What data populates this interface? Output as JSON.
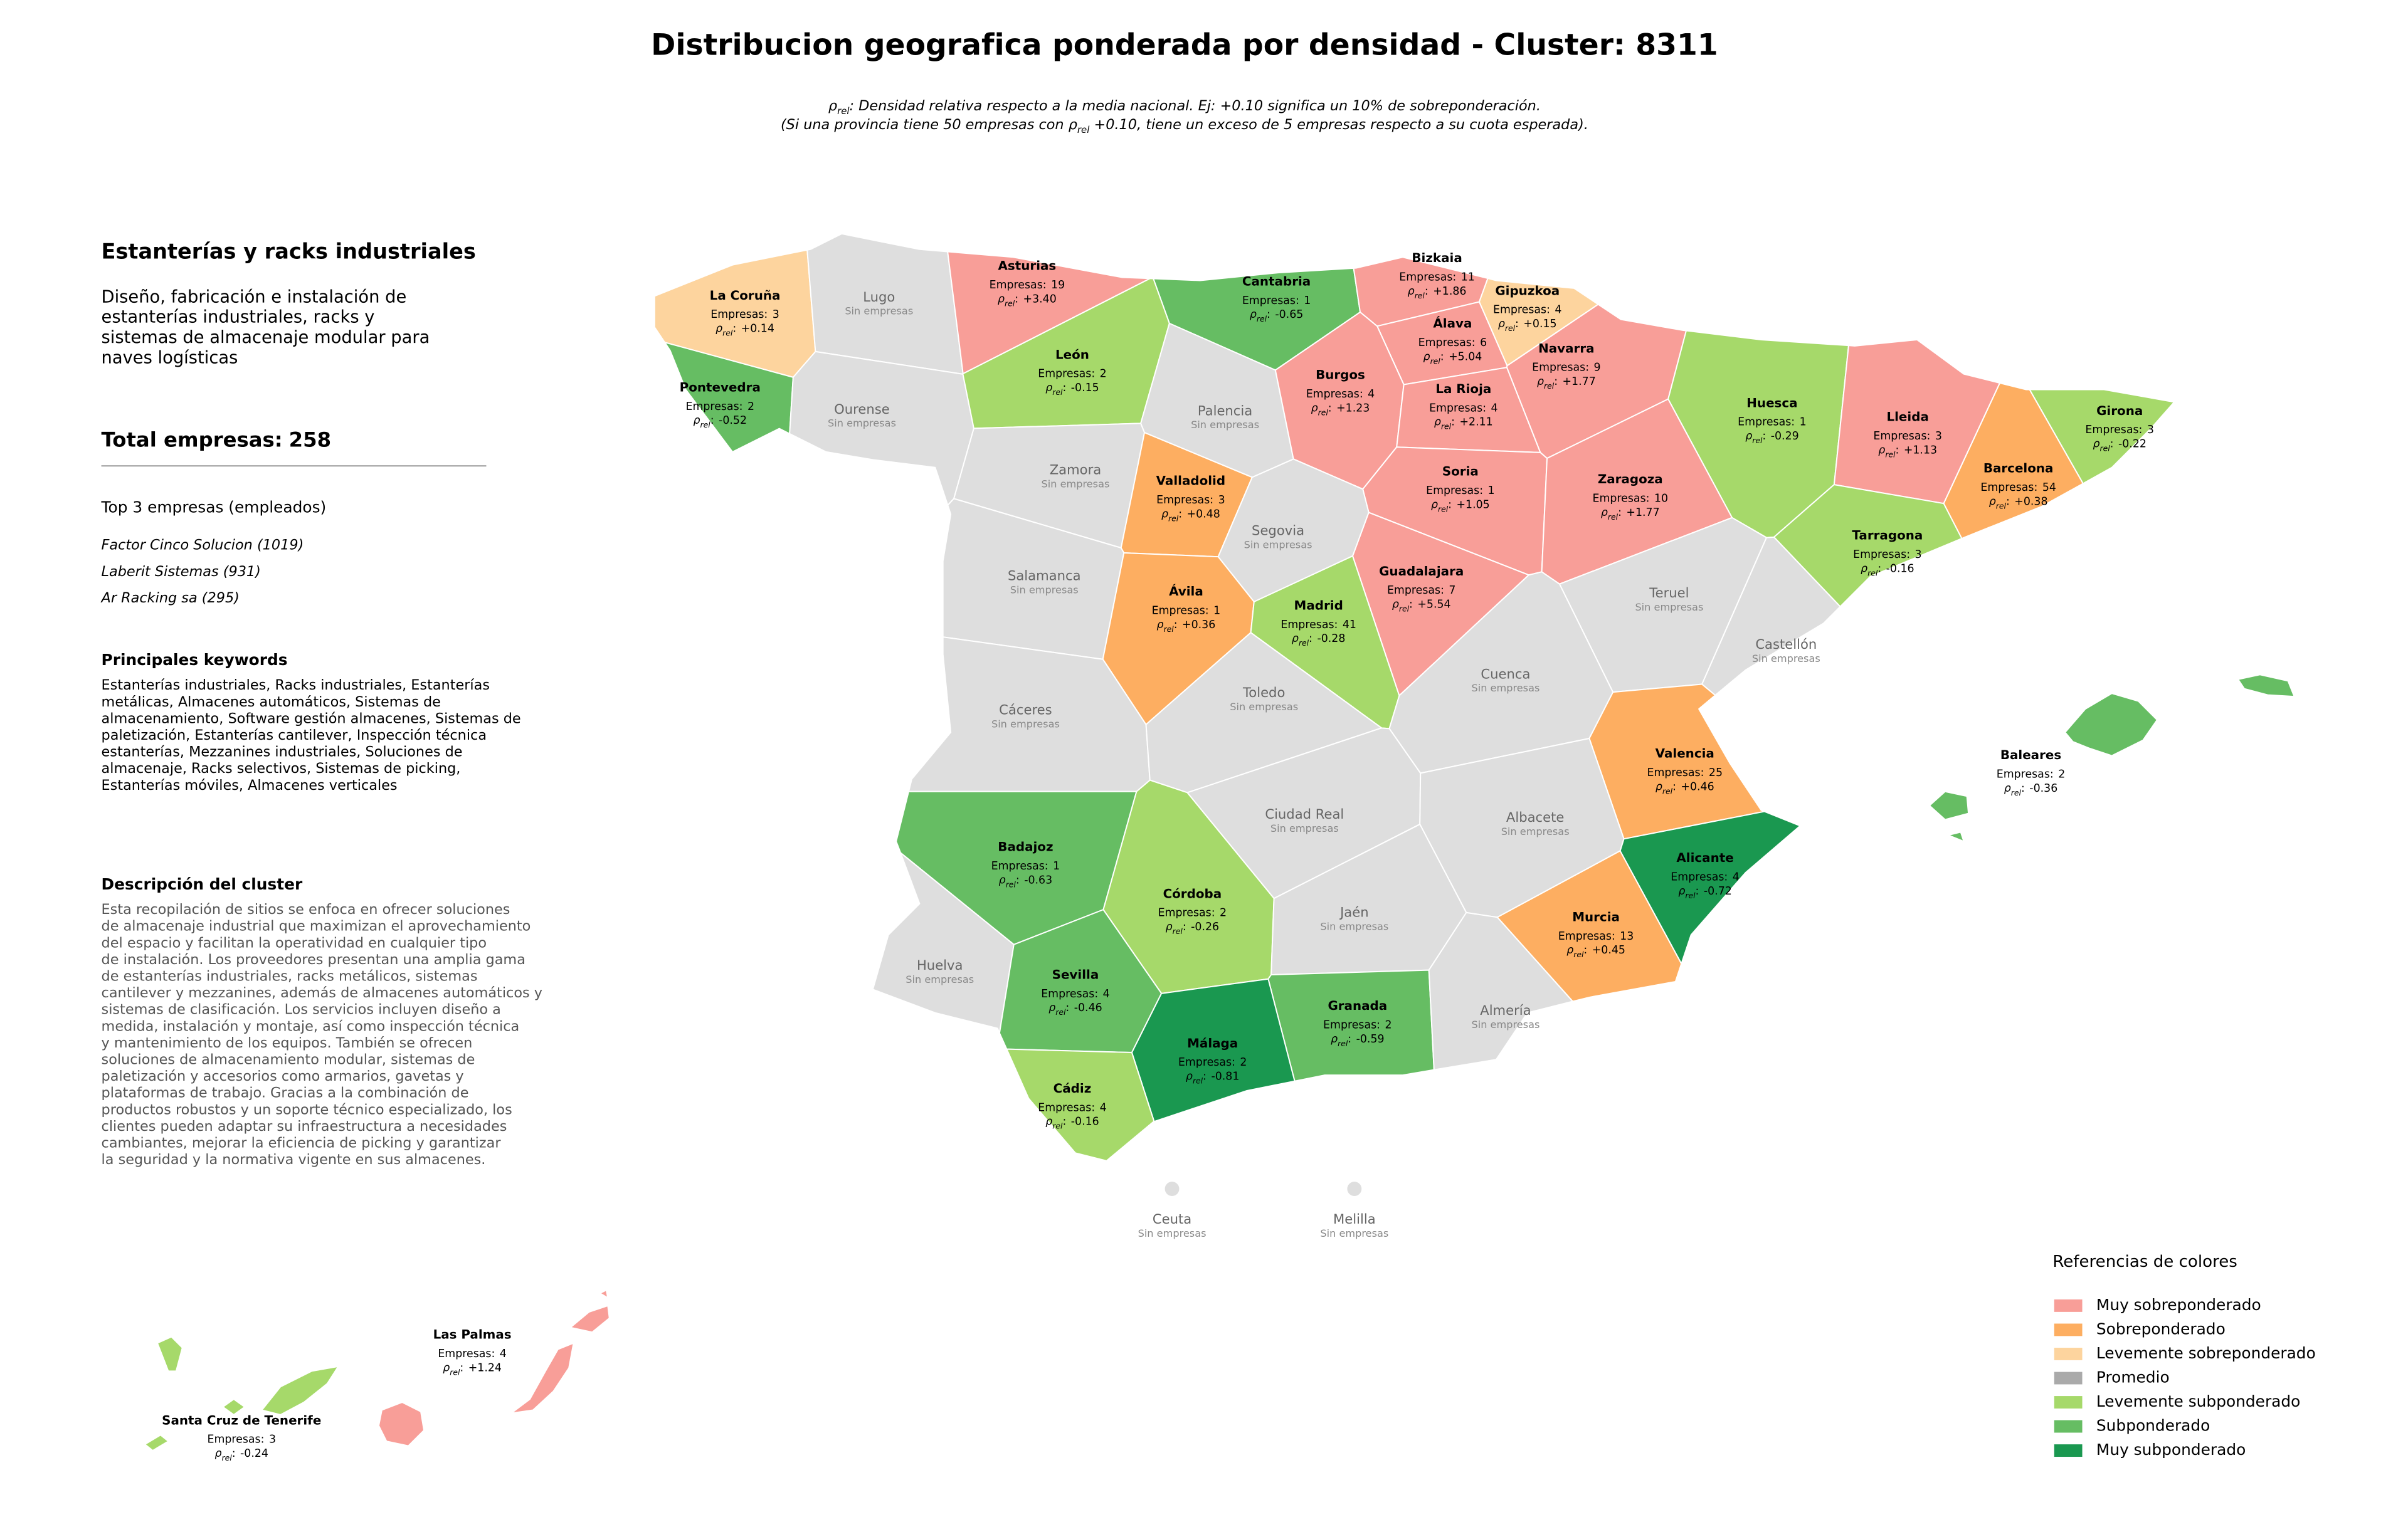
{
  "header": {
    "title": "Distribucion geografica ponderada por densidad - Cluster: 8311",
    "subtitle_lines": [
      {
        "before": "ρ",
        "subscript": "rel",
        "after": ": Densidad relativa respecto a la media nacional. Ej: +0.10 significa un 10% de sobreponderación."
      },
      {
        "before": "(Si una provincia tiene 50 empresas con ρ",
        "subscript": "rel",
        "after": " +0.10, tiene un exceso de 5 empresas respecto a su cuota esperada)."
      }
    ]
  },
  "sidebar": {
    "sector": "Estanterías y racks industriales",
    "sector_description": [
      "Diseño, fabricación e instalación de",
      "estanterías industriales, racks y",
      "sistemas de almacenaje modular para",
      "naves logísticas"
    ],
    "total_label": "Total empresas:",
    "total": 258,
    "top_title": "Top 3 empresas (empleados)",
    "top_companies": [
      "Factor Cinco Solucion (1019)",
      "Laberit Sistemas (931)",
      "Ar Racking sa (295)"
    ],
    "keywords_title": "Principales keywords",
    "keywords": [
      "Estanterías industriales, Racks industriales, Estanterías",
      "metálicas, Almacenes automáticos, Sistemas de",
      "almacenamiento, Software gestión almacenes, Sistemas de",
      "paletización, Estanterías cantilever, Inspección técnica",
      "estanterías, Mezzanines industriales, Soluciones de",
      "almacenaje, Racks selectivos, Sistemas de picking,",
      "Estanterías móviles, Almacenes verticales"
    ],
    "description_title": "Descripción del cluster",
    "description": [
      "Esta recopilación de sitios se enfoca en ofrecer soluciones",
      "de almacenaje industrial que maximizan el aprovechamiento",
      "del espacio y facilitan la operatividad en cualquier tipo",
      "de instalación. Los proveedores presentan una amplia gama",
      "de estanterías industriales, racks metálicos, sistemas",
      "cantilever y mezzanines, además de almacenes automáticos y",
      "sistemas de clasificación. Los servicios incluyen diseño a",
      "medida, instalación y montaje, así como inspección técnica",
      "y mantenimiento de los equipos. También se ofrecen",
      "soluciones de almacenamiento modular, sistemas de",
      "paletización y accesorios como armarios, gavetas y",
      "plataformas de trabajo. Gracias a la combinación de",
      "productos robustos y un soporte técnico especializado, los",
      "clientes pueden adaptar su infraestructura a necesidades",
      "cambiantes, mejorar la eficiencia de picking y garantizar",
      "la seguridad y la normativa vigente en sus almacenes."
    ]
  },
  "map": {
    "companies_label": "Empresas:",
    "rho_prefix": {
      "symbol": "ρ",
      "subscript": "rel",
      "separator": ":"
    },
    "no_companies_label": "Sin empresas",
    "regions": [
      {
        "name": "La Coruña",
        "companies": 3,
        "rho": 0.14,
        "rho_label": "+0.14",
        "color": "#fdd49e"
      },
      {
        "name": "Lugo",
        "color": "#dedede"
      },
      {
        "name": "Asturias",
        "companies": 19,
        "rho": 3.4,
        "rho_label": "+3.40",
        "color": "#f89e98"
      },
      {
        "name": "Cantabria",
        "companies": 1,
        "rho": -0.65,
        "rho_label": "-0.65",
        "color": "#66bd63"
      },
      {
        "name": "Bizkaia",
        "companies": 11,
        "rho": 1.86,
        "rho_label": "+1.86",
        "color": "#f89e98"
      },
      {
        "name": "Gipuzkoa",
        "companies": 4,
        "rho": 0.15,
        "rho_label": "+0.15",
        "color": "#fdd49e"
      },
      {
        "name": "Álava",
        "companies": 6,
        "rho": 5.04,
        "rho_label": "+5.04",
        "color": "#f89e98"
      },
      {
        "name": "Navarra",
        "companies": 9,
        "rho": 1.77,
        "rho_label": "+1.77",
        "color": "#f89e98"
      },
      {
        "name": "Pontevedra",
        "companies": 2,
        "rho": -0.52,
        "rho_label": "-0.52",
        "color": "#66bd63"
      },
      {
        "name": "Ourense",
        "color": "#dedede"
      },
      {
        "name": "León",
        "companies": 2,
        "rho": -0.15,
        "rho_label": "-0.15",
        "color": "#a6d96a"
      },
      {
        "name": "Palencia",
        "color": "#dedede"
      },
      {
        "name": "Burgos",
        "companies": 4,
        "rho": 1.23,
        "rho_label": "+1.23",
        "color": "#f89e98"
      },
      {
        "name": "La Rioja",
        "companies": 4,
        "rho": 2.11,
        "rho_label": "+2.11",
        "color": "#f89e98"
      },
      {
        "name": "Huesca",
        "companies": 1,
        "rho": -0.29,
        "rho_label": "-0.29",
        "color": "#a6d96a"
      },
      {
        "name": "Lleida",
        "companies": 3,
        "rho": 1.13,
        "rho_label": "+1.13",
        "color": "#f89e98"
      },
      {
        "name": "Girona",
        "companies": 3,
        "rho": -0.22,
        "rho_label": "-0.22",
        "color": "#a6d96a"
      },
      {
        "name": "Zamora",
        "color": "#dedede"
      },
      {
        "name": "Valladolid",
        "companies": 3,
        "rho": 0.48,
        "rho_label": "+0.48",
        "color": "#fdae61"
      },
      {
        "name": "Soria",
        "companies": 1,
        "rho": 1.05,
        "rho_label": "+1.05",
        "color": "#f89e98"
      },
      {
        "name": "Zaragoza",
        "companies": 10,
        "rho": 1.77,
        "rho_label": "+1.77",
        "color": "#f89e98"
      },
      {
        "name": "Barcelona",
        "companies": 54,
        "rho": 0.38,
        "rho_label": "+0.38",
        "color": "#fdae61"
      },
      {
        "name": "Tarragona",
        "companies": 3,
        "rho": -0.16,
        "rho_label": "-0.16",
        "color": "#a6d96a"
      },
      {
        "name": "Segovia",
        "color": "#dedede"
      },
      {
        "name": "Salamanca",
        "color": "#dedede"
      },
      {
        "name": "Ávila",
        "companies": 1,
        "rho": 0.36,
        "rho_label": "+0.36",
        "color": "#fdae61"
      },
      {
        "name": "Madrid",
        "companies": 41,
        "rho": -0.28,
        "rho_label": "-0.28",
        "color": "#a6d96a"
      },
      {
        "name": "Guadalajara",
        "companies": 7,
        "rho": 5.54,
        "rho_label": "+5.54",
        "color": "#f89e98"
      },
      {
        "name": "Teruel",
        "color": "#dedede"
      },
      {
        "name": "Castellón",
        "color": "#dedede"
      },
      {
        "name": "Cáceres",
        "color": "#dedede"
      },
      {
        "name": "Toledo",
        "color": "#dedede"
      },
      {
        "name": "Cuenca",
        "color": "#dedede"
      },
      {
        "name": "Valencia",
        "companies": 25,
        "rho": 0.46,
        "rho_label": "+0.46",
        "color": "#fdae61"
      },
      {
        "name": "Badajoz",
        "companies": 1,
        "rho": -0.63,
        "rho_label": "-0.63",
        "color": "#66bd63"
      },
      {
        "name": "Ciudad Real",
        "color": "#dedede"
      },
      {
        "name": "Albacete",
        "color": "#dedede"
      },
      {
        "name": "Alicante",
        "companies": 4,
        "rho": -0.72,
        "rho_label": "-0.72",
        "color": "#1a9850"
      },
      {
        "name": "Córdoba",
        "companies": 2,
        "rho": -0.26,
        "rho_label": "-0.26",
        "color": "#a6d96a"
      },
      {
        "name": "Jaén",
        "color": "#dedede"
      },
      {
        "name": "Murcia",
        "companies": 13,
        "rho": 0.45,
        "rho_label": "+0.45",
        "color": "#fdae61"
      },
      {
        "name": "Huelva",
        "color": "#dedede"
      },
      {
        "name": "Sevilla",
        "companies": 4,
        "rho": -0.46,
        "rho_label": "-0.46",
        "color": "#66bd63"
      },
      {
        "name": "Granada",
        "companies": 2,
        "rho": -0.59,
        "rho_label": "-0.59",
        "color": "#66bd63"
      },
      {
        "name": "Almería",
        "color": "#dedede"
      },
      {
        "name": "Málaga",
        "companies": 2,
        "rho": -0.81,
        "rho_label": "-0.81",
        "color": "#1a9850"
      },
      {
        "name": "Cádiz",
        "companies": 4,
        "rho": -0.16,
        "rho_label": "-0.16",
        "color": "#a6d96a"
      },
      {
        "name": "Baleares",
        "companies": 2,
        "rho": -0.36,
        "rho_label": "-0.36",
        "color": "#66bd63"
      },
      {
        "name": "Ceuta",
        "color": "#dedede"
      },
      {
        "name": "Melilla",
        "color": "#dedede"
      },
      {
        "name": "Las Palmas",
        "companies": 4,
        "rho": 1.24,
        "rho_label": "+1.24",
        "color": "#f89e98"
      },
      {
        "name": "Santa Cruz de Tenerife",
        "companies": 3,
        "rho": -0.24,
        "rho_label": "-0.24",
        "color": "#a6d96a"
      }
    ]
  },
  "legend": {
    "title": "Referencias de colores",
    "items": [
      {
        "label": "Muy sobreponderado",
        "color": "#f89e98"
      },
      {
        "label": "Sobreponderado",
        "color": "#fdae61"
      },
      {
        "label": "Levemente sobreponderado",
        "color": "#fdd49e"
      },
      {
        "label": "Promedio",
        "color": "#aaaaaa"
      },
      {
        "label": "Levemente subponderado",
        "color": "#a6d96a"
      },
      {
        "label": "Subponderado",
        "color": "#66bd63"
      },
      {
        "label": "Muy subponderado",
        "color": "#1a9850"
      }
    ]
  }
}
